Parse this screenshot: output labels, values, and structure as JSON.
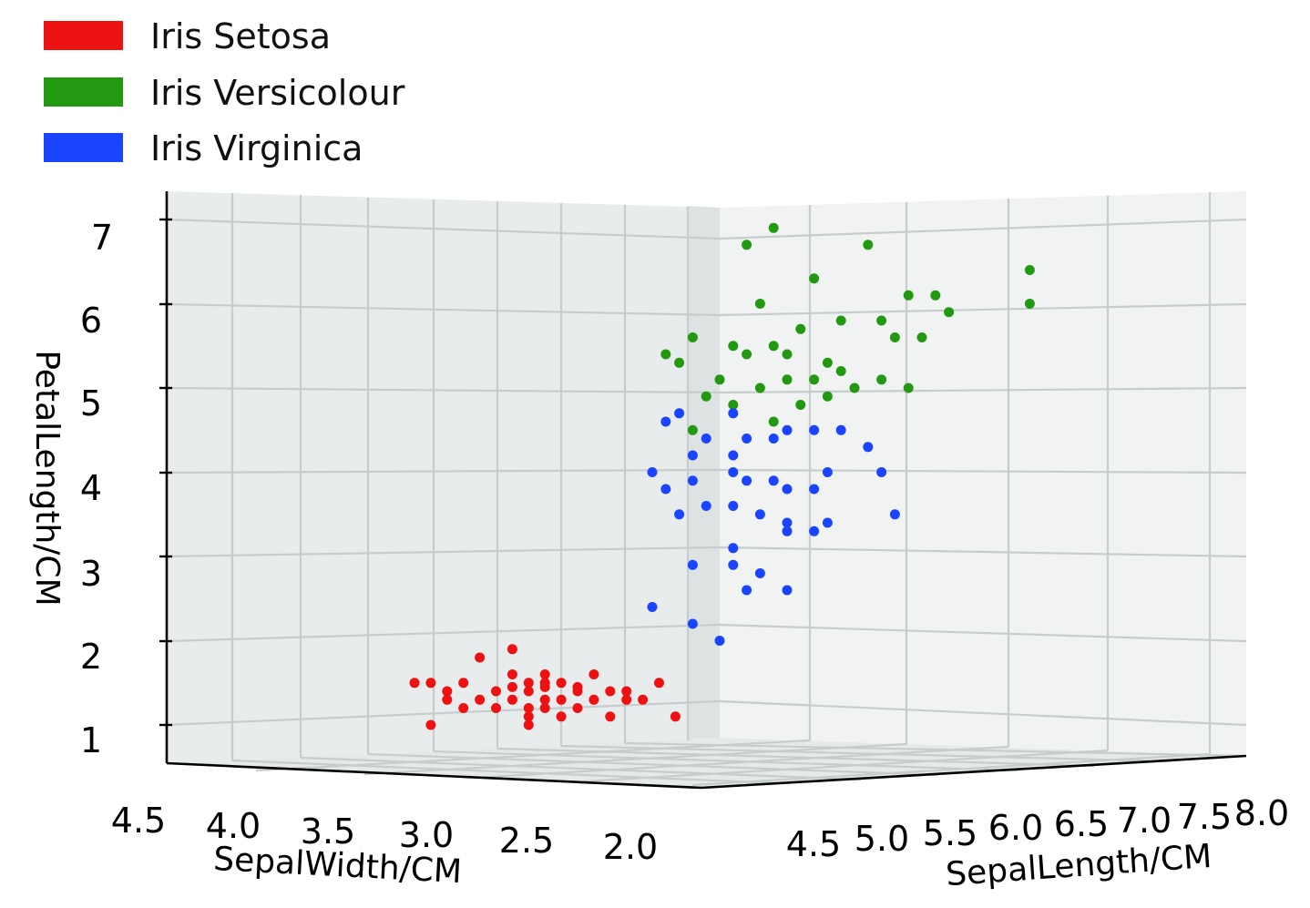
{
  "chart_data": {
    "type": "scatter",
    "projection": "3d",
    "legend": {
      "placement": "top-left",
      "entries": [
        {
          "name": "Iris Setosa",
          "color": "#ee1111"
        },
        {
          "name": "Iris Versicolour",
          "color": "#229911"
        },
        {
          "name": "Iris Virginica",
          "color": "#1a44ff"
        }
      ]
    },
    "axes": {
      "sepal_width": {
        "label": "SepalWidth/CM",
        "ticks": [
          "4.5",
          "4.0",
          "3.5",
          "3.0",
          "2.5",
          "2.0"
        ]
      },
      "sepal_length": {
        "label": "SepalLength/CM",
        "ticks": [
          "4.5",
          "5.0",
          "5.5",
          "6.0",
          "6.5",
          "7.0",
          "7.5",
          "8.0"
        ]
      },
      "petal_length": {
        "label": "PetalLength/CM",
        "ticks": [
          "1",
          "2",
          "3",
          "4",
          "5",
          "6",
          "7"
        ]
      }
    },
    "series": [
      {
        "name": "Iris Setosa",
        "color": "#ee1111",
        "points": [
          [
            3.1,
            1.9
          ],
          [
            3.3,
            1.8
          ],
          [
            3.6,
            1.5
          ],
          [
            3.7,
            1.5
          ],
          [
            3.4,
            1.5
          ],
          [
            3.0,
            1.5
          ],
          [
            2.9,
            1.5
          ],
          [
            2.8,
            1.5
          ],
          [
            3.5,
            1.4
          ],
          [
            3.2,
            1.4
          ],
          [
            3.0,
            1.4
          ],
          [
            2.7,
            1.4
          ],
          [
            2.5,
            1.4
          ],
          [
            2.2,
            1.5
          ],
          [
            3.1,
            1.6
          ],
          [
            2.9,
            1.6
          ],
          [
            2.6,
            1.6
          ],
          [
            2.4,
            1.4
          ],
          [
            3.5,
            1.3
          ],
          [
            3.3,
            1.3
          ],
          [
            3.1,
            1.3
          ],
          [
            2.9,
            1.3
          ],
          [
            2.8,
            1.3
          ],
          [
            2.6,
            1.3
          ],
          [
            2.4,
            1.3
          ],
          [
            3.4,
            1.2
          ],
          [
            3.2,
            1.2
          ],
          [
            3.0,
            1.2
          ],
          [
            2.9,
            1.2
          ],
          [
            2.7,
            1.2
          ],
          [
            2.3,
            1.3
          ],
          [
            3.0,
            1.1
          ],
          [
            2.8,
            1.1
          ],
          [
            2.5,
            1.1
          ],
          [
            2.1,
            1.1
          ],
          [
            3.6,
            1.0
          ],
          [
            3.0,
            1.0
          ],
          [
            3.1,
            1.45
          ],
          [
            2.9,
            1.45
          ],
          [
            2.7,
            1.45
          ]
        ]
      },
      {
        "name": "Iris Versicolour",
        "color": "#229911",
        "points": [
          [
            4.9,
            6.9
          ],
          [
            4.7,
            6.7
          ],
          [
            5.6,
            6.7
          ],
          [
            6.8,
            6.4
          ],
          [
            5.2,
            6.3
          ],
          [
            5.9,
            6.1
          ],
          [
            6.1,
            6.1
          ],
          [
            6.8,
            6.0
          ],
          [
            4.8,
            6.0
          ],
          [
            5.4,
            5.8
          ],
          [
            5.7,
            5.8
          ],
          [
            5.1,
            5.7
          ],
          [
            5.8,
            5.6
          ],
          [
            6.0,
            5.6
          ],
          [
            4.3,
            5.6
          ],
          [
            4.6,
            5.5
          ],
          [
            4.9,
            5.5
          ],
          [
            4.2,
            5.3
          ],
          [
            5.3,
            5.3
          ],
          [
            5.0,
            5.1
          ],
          [
            5.2,
            5.1
          ],
          [
            4.5,
            5.1
          ],
          [
            4.8,
            5.0
          ],
          [
            5.5,
            5.0
          ],
          [
            5.9,
            5.0
          ],
          [
            4.4,
            4.9
          ],
          [
            4.6,
            4.8
          ],
          [
            5.1,
            4.8
          ],
          [
            4.9,
            4.6
          ],
          [
            4.3,
            4.5
          ],
          [
            5.3,
            4.9
          ],
          [
            5.4,
            5.2
          ],
          [
            4.7,
            5.4
          ],
          [
            5.0,
            5.4
          ],
          [
            6.2,
            5.9
          ],
          [
            5.7,
            5.1
          ],
          [
            4.1,
            5.4
          ]
        ]
      },
      {
        "name": "Iris Virginica",
        "color": "#1a44ff",
        "points": [
          [
            4.2,
            4.7
          ],
          [
            4.6,
            4.7
          ],
          [
            4.1,
            4.6
          ],
          [
            5.0,
            4.5
          ],
          [
            5.2,
            4.5
          ],
          [
            5.4,
            4.5
          ],
          [
            4.4,
            4.4
          ],
          [
            4.7,
            4.4
          ],
          [
            4.9,
            4.4
          ],
          [
            4.3,
            4.2
          ],
          [
            4.6,
            4.2
          ],
          [
            5.6,
            4.3
          ],
          [
            4.0,
            4.0
          ],
          [
            4.6,
            4.0
          ],
          [
            5.3,
            4.0
          ],
          [
            5.7,
            4.0
          ],
          [
            4.3,
            3.9
          ],
          [
            4.7,
            3.9
          ],
          [
            4.9,
            3.9
          ],
          [
            5.0,
            3.8
          ],
          [
            5.2,
            3.8
          ],
          [
            4.1,
            3.8
          ],
          [
            4.4,
            3.6
          ],
          [
            4.6,
            3.6
          ],
          [
            4.8,
            3.5
          ],
          [
            4.2,
            3.5
          ],
          [
            5.0,
            3.4
          ],
          [
            5.3,
            3.4
          ],
          [
            5.2,
            3.3
          ],
          [
            5.0,
            3.3
          ],
          [
            5.8,
            3.5
          ],
          [
            4.6,
            3.1
          ],
          [
            4.3,
            2.9
          ],
          [
            4.6,
            2.9
          ],
          [
            4.8,
            2.8
          ],
          [
            5.0,
            2.6
          ],
          [
            4.7,
            2.6
          ],
          [
            4.0,
            2.4
          ],
          [
            4.3,
            2.2
          ],
          [
            4.5,
            2.0
          ]
        ]
      }
    ]
  }
}
